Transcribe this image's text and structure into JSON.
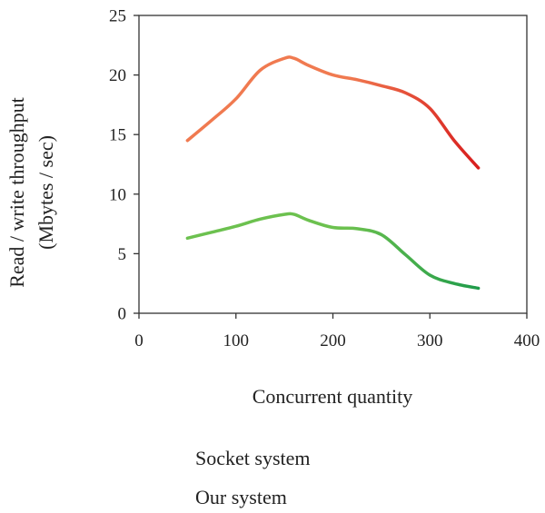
{
  "chart_data": {
    "type": "line",
    "xlabel": "Concurrent quantity",
    "ylabel_lines": [
      "Read / write throughput",
      "(Mbytes / sec)"
    ],
    "xlim": [
      0,
      400
    ],
    "ylim": [
      0,
      25
    ],
    "xticks": [
      0,
      100,
      200,
      300,
      400
    ],
    "yticks": [
      0,
      5,
      10,
      15,
      20,
      25
    ],
    "grid": false,
    "legend_position": "bottom",
    "series": [
      {
        "name": "Socket system",
        "color_start": "#f07a50",
        "color_end": "#d81e1e",
        "x": [
          50,
          75,
          100,
          125,
          150,
          160,
          175,
          200,
          225,
          250,
          275,
          300,
          325,
          350
        ],
        "y": [
          14.5,
          16.2,
          18.0,
          20.4,
          21.4,
          21.4,
          20.8,
          20.0,
          19.6,
          19.1,
          18.5,
          17.2,
          14.5,
          12.2
        ]
      },
      {
        "name": "Our system",
        "color_start": "#6cc14f",
        "color_end": "#1f9b4a",
        "x": [
          50,
          75,
          100,
          125,
          150,
          160,
          175,
          200,
          225,
          250,
          275,
          300,
          325,
          350
        ],
        "y": [
          6.3,
          6.8,
          7.3,
          7.9,
          8.3,
          8.3,
          7.8,
          7.2,
          7.1,
          6.6,
          4.9,
          3.2,
          2.5,
          2.1
        ]
      }
    ]
  }
}
